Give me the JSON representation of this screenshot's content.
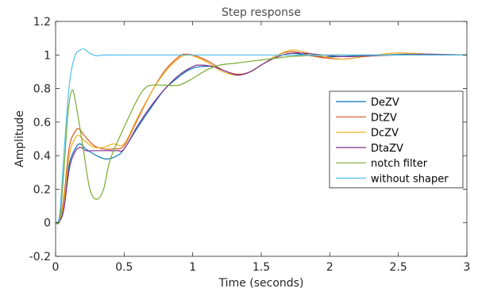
{
  "chart_data": {
    "type": "line",
    "title": "Step response",
    "xlabel": "Time (seconds)",
    "ylabel": "Amplitude",
    "xlim": [
      0,
      3
    ],
    "ylim": [
      -0.2,
      1.2
    ],
    "xticks": [
      0,
      0.5,
      1,
      1.5,
      2,
      2.5,
      3
    ],
    "xtick_labels": [
      "0",
      "0.5",
      "1",
      "1.5",
      "2",
      "2.5",
      "3"
    ],
    "yticks": [
      -0.2,
      0,
      0.2,
      0.4,
      0.6,
      0.8,
      1,
      1.2
    ],
    "ytick_labels": [
      "-0.2",
      "0",
      "0.2",
      "0.4",
      "0.6",
      "0.8",
      "1",
      "1.2"
    ],
    "grid": false,
    "legend_position": "right",
    "series": [
      {
        "name": "DeZV",
        "color": "#0072BD",
        "points": [
          [
            0,
            0
          ],
          [
            0.03,
            0.01
          ],
          [
            0.06,
            0.1
          ],
          [
            0.1,
            0.35
          ],
          [
            0.15,
            0.45
          ],
          [
            0.18,
            0.47
          ],
          [
            0.22,
            0.44
          ],
          [
            0.3,
            0.4
          ],
          [
            0.37,
            0.38
          ],
          [
            0.45,
            0.4
          ],
          [
            0.5,
            0.44
          ],
          [
            0.6,
            0.57
          ],
          [
            0.7,
            0.69
          ],
          [
            0.8,
            0.8
          ],
          [
            0.9,
            0.87
          ],
          [
            0.97,
            0.91
          ],
          [
            1.05,
            0.93
          ],
          [
            1.15,
            0.93
          ],
          [
            1.25,
            0.9
          ],
          [
            1.33,
            0.88
          ],
          [
            1.42,
            0.9
          ],
          [
            1.52,
            0.95
          ],
          [
            1.62,
            0.99
          ],
          [
            1.72,
            1.01
          ],
          [
            1.82,
            1.0
          ],
          [
            1.92,
            0.99
          ],
          [
            2.05,
            0.99
          ],
          [
            2.2,
            0.995
          ],
          [
            2.4,
            1.0
          ],
          [
            2.6,
            1.005
          ],
          [
            2.8,
            1.0
          ],
          [
            3.0,
            1.0
          ]
        ]
      },
      {
        "name": "DtZV",
        "color": "#D95319",
        "points": [
          [
            0,
            0
          ],
          [
            0.03,
            0.02
          ],
          [
            0.06,
            0.15
          ],
          [
            0.1,
            0.45
          ],
          [
            0.14,
            0.54
          ],
          [
            0.17,
            0.56
          ],
          [
            0.21,
            0.52
          ],
          [
            0.28,
            0.46
          ],
          [
            0.35,
            0.44
          ],
          [
            0.42,
            0.44
          ],
          [
            0.5,
            0.46
          ],
          [
            0.6,
            0.62
          ],
          [
            0.7,
            0.78
          ],
          [
            0.8,
            0.91
          ],
          [
            0.9,
            0.99
          ],
          [
            0.95,
            1.005
          ],
          [
            1.02,
            0.995
          ],
          [
            1.12,
            0.96
          ],
          [
            1.22,
            0.91
          ],
          [
            1.33,
            0.885
          ],
          [
            1.42,
            0.9
          ],
          [
            1.52,
            0.95
          ],
          [
            1.62,
            1.0
          ],
          [
            1.72,
            1.02
          ],
          [
            1.8,
            1.01
          ],
          [
            1.9,
            0.99
          ],
          [
            2.0,
            0.98
          ],
          [
            2.1,
            0.975
          ],
          [
            2.25,
            0.99
          ],
          [
            2.45,
            1.01
          ],
          [
            2.6,
            1.01
          ],
          [
            2.8,
            1.0
          ],
          [
            3.0,
            1.0
          ]
        ]
      },
      {
        "name": "DcZV",
        "color": "#EDB120",
        "points": [
          [
            0,
            0
          ],
          [
            0.03,
            0.02
          ],
          [
            0.06,
            0.12
          ],
          [
            0.1,
            0.4
          ],
          [
            0.14,
            0.5
          ],
          [
            0.17,
            0.52
          ],
          [
            0.21,
            0.49
          ],
          [
            0.28,
            0.45
          ],
          [
            0.35,
            0.45
          ],
          [
            0.42,
            0.47
          ],
          [
            0.5,
            0.47
          ],
          [
            0.6,
            0.63
          ],
          [
            0.7,
            0.78
          ],
          [
            0.8,
            0.9
          ],
          [
            0.9,
            0.98
          ],
          [
            0.96,
            1.0
          ],
          [
            1.02,
            0.99
          ],
          [
            1.12,
            0.95
          ],
          [
            1.22,
            0.9
          ],
          [
            1.33,
            0.88
          ],
          [
            1.42,
            0.9
          ],
          [
            1.52,
            0.95
          ],
          [
            1.62,
            1.0
          ],
          [
            1.72,
            1.03
          ],
          [
            1.8,
            1.02
          ],
          [
            1.9,
            1.0
          ],
          [
            2.0,
            0.985
          ],
          [
            2.1,
            0.975
          ],
          [
            2.25,
            0.99
          ],
          [
            2.45,
            1.01
          ],
          [
            2.6,
            1.01
          ],
          [
            2.8,
            1.0
          ],
          [
            3.0,
            1.0
          ]
        ]
      },
      {
        "name": "DtaZV",
        "color": "#7E2F8E",
        "points": [
          [
            0,
            0
          ],
          [
            0.03,
            0.01
          ],
          [
            0.06,
            0.08
          ],
          [
            0.1,
            0.32
          ],
          [
            0.14,
            0.42
          ],
          [
            0.18,
            0.45
          ],
          [
            0.22,
            0.43
          ],
          [
            0.3,
            0.43
          ],
          [
            0.38,
            0.43
          ],
          [
            0.45,
            0.43
          ],
          [
            0.5,
            0.44
          ],
          [
            0.6,
            0.58
          ],
          [
            0.7,
            0.7
          ],
          [
            0.8,
            0.8
          ],
          [
            0.9,
            0.88
          ],
          [
            1.0,
            0.93
          ],
          [
            1.05,
            0.94
          ],
          [
            1.15,
            0.93
          ],
          [
            1.25,
            0.9
          ],
          [
            1.33,
            0.88
          ],
          [
            1.42,
            0.9
          ],
          [
            1.52,
            0.95
          ],
          [
            1.62,
            0.99
          ],
          [
            1.72,
            1.01
          ],
          [
            1.82,
            1.01
          ],
          [
            1.95,
            1.0
          ],
          [
            2.1,
            0.99
          ],
          [
            2.3,
            0.995
          ],
          [
            2.5,
            1.0
          ],
          [
            2.7,
            1.005
          ],
          [
            3.0,
            1.0
          ]
        ]
      },
      {
        "name": "notch filter",
        "color": "#77AC30",
        "points": [
          [
            0,
            0
          ],
          [
            0.03,
            0.02
          ],
          [
            0.06,
            0.3
          ],
          [
            0.09,
            0.65
          ],
          [
            0.12,
            0.79
          ],
          [
            0.15,
            0.7
          ],
          [
            0.2,
            0.45
          ],
          [
            0.25,
            0.2
          ],
          [
            0.3,
            0.14
          ],
          [
            0.35,
            0.2
          ],
          [
            0.4,
            0.38
          ],
          [
            0.5,
            0.57
          ],
          [
            0.6,
            0.74
          ],
          [
            0.65,
            0.8
          ],
          [
            0.7,
            0.82
          ],
          [
            0.8,
            0.82
          ],
          [
            0.9,
            0.82
          ],
          [
            1.0,
            0.86
          ],
          [
            1.1,
            0.91
          ],
          [
            1.2,
            0.94
          ],
          [
            1.3,
            0.95
          ],
          [
            1.4,
            0.96
          ],
          [
            1.5,
            0.97
          ],
          [
            1.6,
            0.98
          ],
          [
            1.7,
            0.99
          ],
          [
            1.8,
            0.995
          ],
          [
            2.0,
            1.0
          ],
          [
            2.5,
            1.0
          ],
          [
            3.0,
            1.0
          ]
        ]
      },
      {
        "name": "without shaper",
        "color": "#4DBEEE",
        "points": [
          [
            0,
            0
          ],
          [
            0.03,
            0.05
          ],
          [
            0.06,
            0.4
          ],
          [
            0.1,
            0.82
          ],
          [
            0.14,
            0.99
          ],
          [
            0.18,
            1.03
          ],
          [
            0.21,
            1.035
          ],
          [
            0.25,
            1.01
          ],
          [
            0.3,
            0.995
          ],
          [
            0.35,
            1.0
          ],
          [
            0.5,
            1.0
          ],
          [
            1.0,
            1.0
          ],
          [
            1.5,
            1.0
          ],
          [
            2.0,
            1.0
          ],
          [
            2.5,
            1.0
          ],
          [
            3.0,
            1.0
          ]
        ]
      }
    ]
  }
}
